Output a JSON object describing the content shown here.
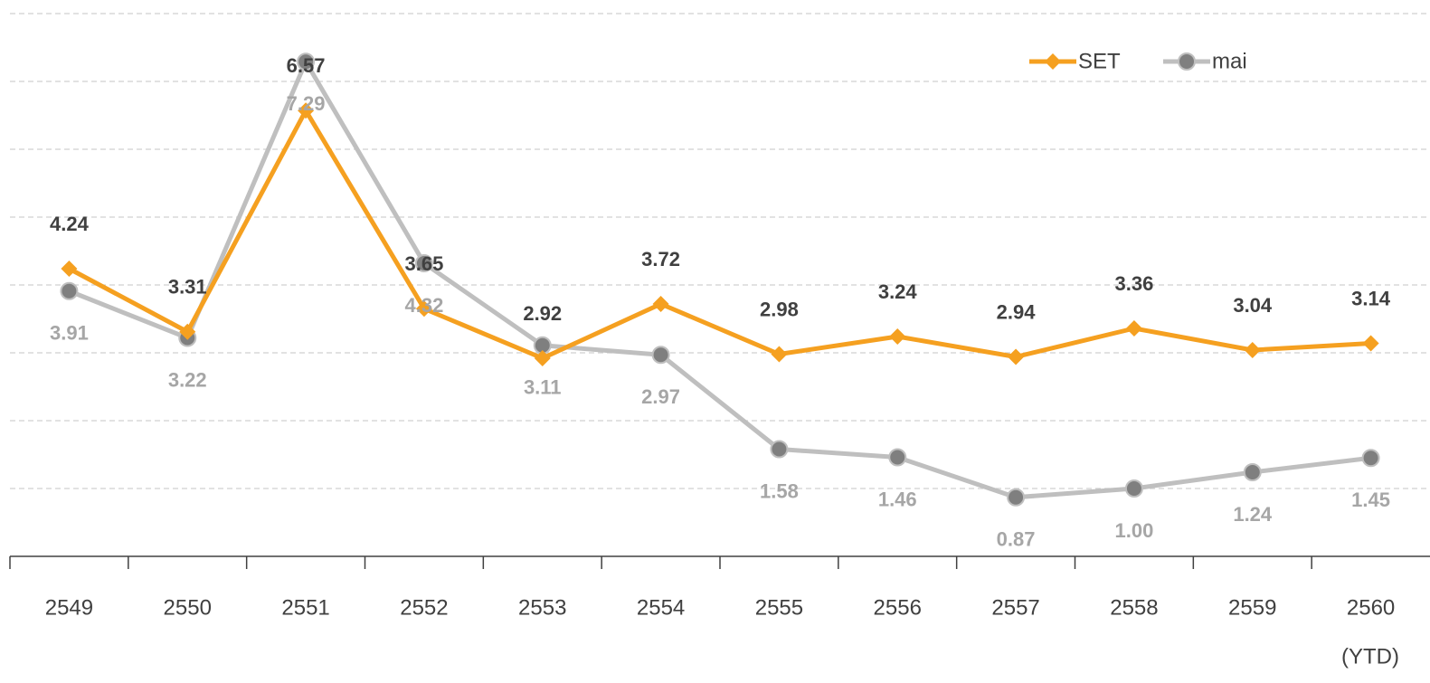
{
  "chart_data": {
    "type": "line",
    "categories": [
      "2549",
      "2550",
      "2551",
      "2552",
      "2553",
      "2554",
      "2555",
      "2556",
      "2557",
      "2558",
      "2559",
      "2560"
    ],
    "x_note": "(YTD)",
    "series": [
      {
        "name": "SET",
        "color": "#f5a020",
        "marker": "diamond",
        "label_color": "#404040",
        "values": [
          4.24,
          3.31,
          6.57,
          3.65,
          2.92,
          3.72,
          2.98,
          3.24,
          2.94,
          3.36,
          3.04,
          3.14
        ],
        "value_labels": [
          "4.24",
          "3.31",
          "6.57",
          "3.65",
          "2.92",
          "3.72",
          "2.98",
          "3.24",
          "2.94",
          "3.36",
          "3.04",
          "3.14"
        ]
      },
      {
        "name": "mai",
        "color": "#bfbfbf",
        "marker": "circle",
        "marker_color": "#7f7f7f",
        "label_color": "#a6a6a6",
        "values": [
          3.91,
          3.22,
          7.29,
          4.32,
          3.11,
          2.97,
          1.58,
          1.46,
          0.87,
          1.0,
          1.24,
          1.45
        ],
        "value_labels": [
          "3.91",
          "3.22",
          "7.29",
          "4.32",
          "3.11",
          "2.97",
          "1.58",
          "1.46",
          "0.87",
          "1.00",
          "1.24",
          "1.45"
        ]
      }
    ],
    "ylim": [
      0,
      8
    ],
    "ygrid": [
      1,
      2,
      3,
      4,
      5,
      6,
      7,
      8
    ],
    "grid": true,
    "legend": "top-right"
  }
}
